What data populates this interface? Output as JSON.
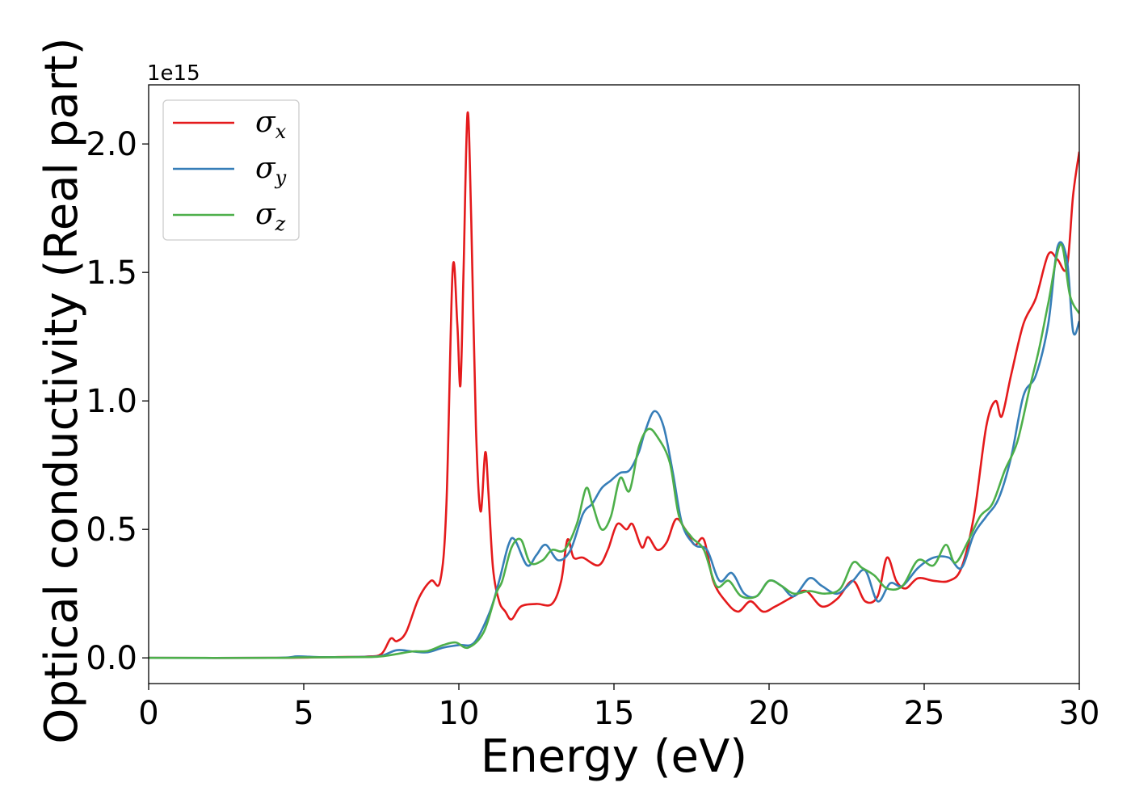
{
  "chart_data": {
    "type": "line",
    "xlabel": "Energy (eV)",
    "ylabel": "Optical conductivity (Real part)",
    "y_offset_label": "1e15",
    "xlim": [
      0,
      30
    ],
    "ylim": [
      -0.1,
      2.23
    ],
    "x_ticks": [
      0,
      5,
      10,
      15,
      20,
      25,
      30
    ],
    "y_ticks": [
      0.0,
      0.5,
      1.0,
      1.5,
      2.0
    ],
    "y_tick_labels": [
      "0.0",
      "0.5",
      "1.0",
      "1.5",
      "2.0"
    ],
    "grid": false,
    "legend_position": "top-left",
    "series": [
      {
        "name": "σx",
        "symbol": "σ",
        "subscript": "x",
        "color": "#e41a1c",
        "points": [
          [
            0,
            0
          ],
          [
            4,
            0
          ],
          [
            6,
            0.003
          ],
          [
            7,
            0.005
          ],
          [
            7.5,
            0.015
          ],
          [
            7.8,
            0.075
          ],
          [
            8,
            0.065
          ],
          [
            8.3,
            0.1
          ],
          [
            8.7,
            0.23
          ],
          [
            9.1,
            0.3
          ],
          [
            9.4,
            0.3
          ],
          [
            9.6,
            0.6
          ],
          [
            9.8,
            1.51
          ],
          [
            9.95,
            1.3
          ],
          [
            10.05,
            1.06
          ],
          [
            10.15,
            1.5
          ],
          [
            10.28,
            2.12
          ],
          [
            10.4,
            1.7
          ],
          [
            10.55,
            0.9
          ],
          [
            10.7,
            0.57
          ],
          [
            10.85,
            0.8
          ],
          [
            10.95,
            0.65
          ],
          [
            11.1,
            0.35
          ],
          [
            11.3,
            0.22
          ],
          [
            11.5,
            0.18
          ],
          [
            11.7,
            0.15
          ],
          [
            12,
            0.2
          ],
          [
            12.5,
            0.21
          ],
          [
            13,
            0.21
          ],
          [
            13.3,
            0.3
          ],
          [
            13.5,
            0.46
          ],
          [
            13.7,
            0.39
          ],
          [
            14,
            0.39
          ],
          [
            14.5,
            0.36
          ],
          [
            14.8,
            0.42
          ],
          [
            15.1,
            0.52
          ],
          [
            15.4,
            0.5
          ],
          [
            15.6,
            0.52
          ],
          [
            15.9,
            0.43
          ],
          [
            16.1,
            0.47
          ],
          [
            16.4,
            0.42
          ],
          [
            16.7,
            0.45
          ],
          [
            17,
            0.54
          ],
          [
            17.3,
            0.5
          ],
          [
            17.6,
            0.44
          ],
          [
            17.9,
            0.46
          ],
          [
            18.2,
            0.3
          ],
          [
            18.6,
            0.22
          ],
          [
            19,
            0.18
          ],
          [
            19.4,
            0.22
          ],
          [
            19.8,
            0.18
          ],
          [
            20.2,
            0.2
          ],
          [
            20.8,
            0.24
          ],
          [
            21.2,
            0.26
          ],
          [
            21.7,
            0.2
          ],
          [
            22.2,
            0.23
          ],
          [
            22.7,
            0.3
          ],
          [
            23.1,
            0.22
          ],
          [
            23.5,
            0.24
          ],
          [
            23.8,
            0.39
          ],
          [
            24.1,
            0.3
          ],
          [
            24.4,
            0.27
          ],
          [
            24.8,
            0.31
          ],
          [
            25.3,
            0.3
          ],
          [
            25.8,
            0.3
          ],
          [
            26.2,
            0.35
          ],
          [
            26.6,
            0.55
          ],
          [
            27,
            0.9
          ],
          [
            27.3,
            1.0
          ],
          [
            27.5,
            0.94
          ],
          [
            27.8,
            1.1
          ],
          [
            28.2,
            1.3
          ],
          [
            28.6,
            1.4
          ],
          [
            29,
            1.57
          ],
          [
            29.3,
            1.55
          ],
          [
            29.6,
            1.52
          ],
          [
            29.8,
            1.8
          ],
          [
            30,
            1.97
          ]
        ]
      },
      {
        "name": "σy",
        "symbol": "σ",
        "subscript": "y",
        "color": "#377eb8",
        "points": [
          [
            0,
            0
          ],
          [
            4,
            0
          ],
          [
            4.8,
            0.006
          ],
          [
            5.5,
            0.003
          ],
          [
            7,
            0.004
          ],
          [
            7.5,
            0.008
          ],
          [
            8,
            0.03
          ],
          [
            8.5,
            0.025
          ],
          [
            9,
            0.022
          ],
          [
            9.5,
            0.04
          ],
          [
            10,
            0.05
          ],
          [
            10.5,
            0.06
          ],
          [
            11,
            0.18
          ],
          [
            11.3,
            0.3
          ],
          [
            11.6,
            0.44
          ],
          [
            11.8,
            0.46
          ],
          [
            12.2,
            0.36
          ],
          [
            12.5,
            0.4
          ],
          [
            12.8,
            0.44
          ],
          [
            13.2,
            0.38
          ],
          [
            13.6,
            0.42
          ],
          [
            14,
            0.56
          ],
          [
            14.3,
            0.6
          ],
          [
            14.6,
            0.66
          ],
          [
            14.9,
            0.69
          ],
          [
            15.2,
            0.72
          ],
          [
            15.5,
            0.73
          ],
          [
            15.8,
            0.8
          ],
          [
            16,
            0.88
          ],
          [
            16.3,
            0.96
          ],
          [
            16.6,
            0.9
          ],
          [
            16.9,
            0.72
          ],
          [
            17.2,
            0.52
          ],
          [
            17.6,
            0.44
          ],
          [
            18,
            0.42
          ],
          [
            18.4,
            0.3
          ],
          [
            18.8,
            0.33
          ],
          [
            19.2,
            0.25
          ],
          [
            19.6,
            0.24
          ],
          [
            20,
            0.3
          ],
          [
            20.4,
            0.28
          ],
          [
            20.8,
            0.24
          ],
          [
            21.3,
            0.31
          ],
          [
            21.7,
            0.28
          ],
          [
            22.2,
            0.25
          ],
          [
            22.7,
            0.3
          ],
          [
            23.1,
            0.34
          ],
          [
            23.5,
            0.22
          ],
          [
            23.9,
            0.29
          ],
          [
            24.3,
            0.28
          ],
          [
            24.8,
            0.35
          ],
          [
            25.3,
            0.39
          ],
          [
            25.8,
            0.39
          ],
          [
            26.2,
            0.35
          ],
          [
            26.6,
            0.48
          ],
          [
            27,
            0.55
          ],
          [
            27.4,
            0.62
          ],
          [
            27.8,
            0.78
          ],
          [
            28.2,
            1.02
          ],
          [
            28.6,
            1.1
          ],
          [
            29,
            1.3
          ],
          [
            29.3,
            1.6
          ],
          [
            29.6,
            1.55
          ],
          [
            29.8,
            1.27
          ],
          [
            30,
            1.31
          ]
        ]
      },
      {
        "name": "σz",
        "symbol": "σ",
        "subscript": "z",
        "color": "#4daf4a",
        "points": [
          [
            0,
            0
          ],
          [
            4,
            0
          ],
          [
            5,
            0.002
          ],
          [
            7,
            0.003
          ],
          [
            7.5,
            0.006
          ],
          [
            8,
            0.015
          ],
          [
            8.5,
            0.025
          ],
          [
            9,
            0.027
          ],
          [
            9.5,
            0.05
          ],
          [
            9.9,
            0.06
          ],
          [
            10.3,
            0.04
          ],
          [
            10.8,
            0.1
          ],
          [
            11.2,
            0.25
          ],
          [
            11.4,
            0.3
          ],
          [
            11.7,
            0.43
          ],
          [
            12,
            0.46
          ],
          [
            12.3,
            0.37
          ],
          [
            12.7,
            0.38
          ],
          [
            13,
            0.42
          ],
          [
            13.4,
            0.42
          ],
          [
            13.8,
            0.52
          ],
          [
            14.1,
            0.66
          ],
          [
            14.3,
            0.6
          ],
          [
            14.6,
            0.5
          ],
          [
            14.9,
            0.55
          ],
          [
            15.2,
            0.7
          ],
          [
            15.5,
            0.65
          ],
          [
            15.8,
            0.82
          ],
          [
            16.1,
            0.89
          ],
          [
            16.4,
            0.86
          ],
          [
            16.8,
            0.76
          ],
          [
            17.1,
            0.55
          ],
          [
            17.5,
            0.47
          ],
          [
            17.9,
            0.42
          ],
          [
            18.3,
            0.28
          ],
          [
            18.7,
            0.3
          ],
          [
            19.1,
            0.24
          ],
          [
            19.6,
            0.24
          ],
          [
            20,
            0.3
          ],
          [
            20.4,
            0.28
          ],
          [
            20.8,
            0.25
          ],
          [
            21.3,
            0.26
          ],
          [
            21.8,
            0.25
          ],
          [
            22.3,
            0.27
          ],
          [
            22.7,
            0.37
          ],
          [
            23,
            0.35
          ],
          [
            23.4,
            0.32
          ],
          [
            23.8,
            0.27
          ],
          [
            24.3,
            0.28
          ],
          [
            24.8,
            0.38
          ],
          [
            25.3,
            0.36
          ],
          [
            25.7,
            0.44
          ],
          [
            26,
            0.37
          ],
          [
            26.4,
            0.45
          ],
          [
            26.8,
            0.55
          ],
          [
            27.2,
            0.6
          ],
          [
            27.6,
            0.73
          ],
          [
            28,
            0.84
          ],
          [
            28.4,
            1.05
          ],
          [
            28.7,
            1.2
          ],
          [
            29,
            1.38
          ],
          [
            29.4,
            1.61
          ],
          [
            29.7,
            1.41
          ],
          [
            30,
            1.34
          ]
        ]
      }
    ]
  }
}
